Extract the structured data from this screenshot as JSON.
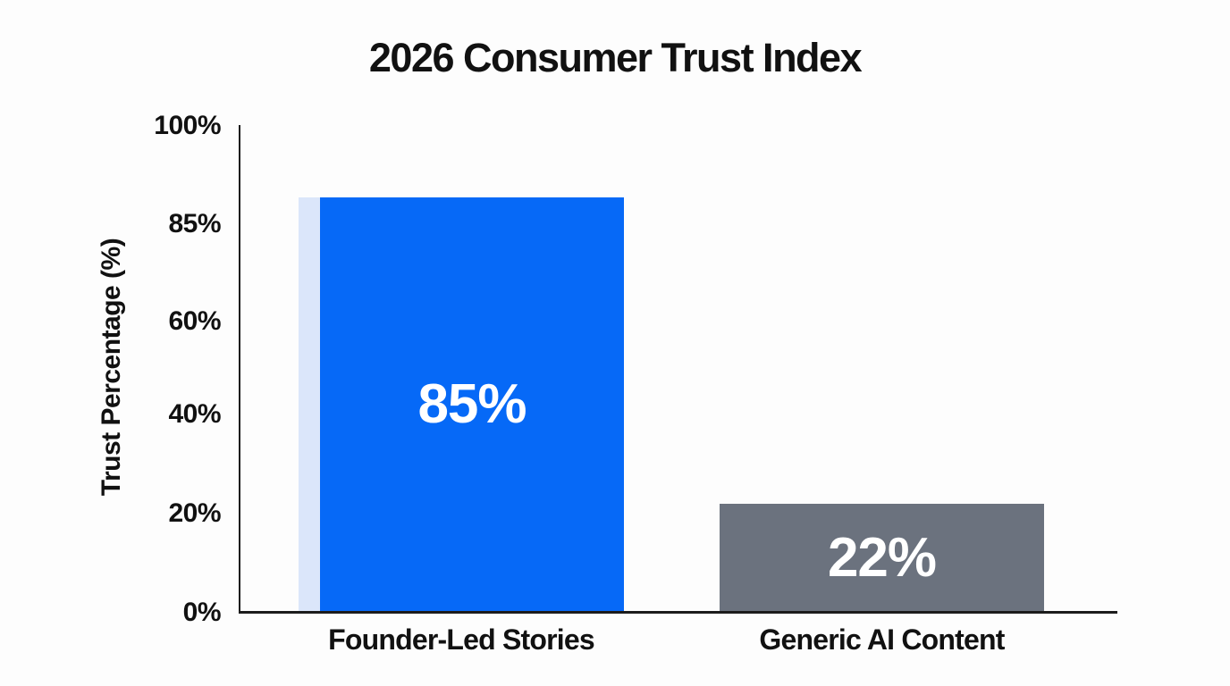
{
  "title": "2026 Consumer Trust Index",
  "colors": {
    "background": "#fdfdfd",
    "axis": "#1c1c1c",
    "text": "#111111",
    "bar_label_text": "#ffffff",
    "founder_bar": "#0669f7",
    "founder_bar_strip": "#dbe6fa",
    "generic_bar": "#6b727e"
  },
  "chart_data": {
    "type": "bar",
    "title": "2026 Consumer Trust Index",
    "xlabel": "",
    "ylabel": "Trust Percentage (%)",
    "ylim": [
      0,
      100
    ],
    "grid": false,
    "legend": false,
    "categories": [
      "Founder-Led Stories",
      "Generic AI Content"
    ],
    "values": [
      85,
      22
    ],
    "bar_labels": [
      "85%",
      "22%"
    ],
    "bar_colors": [
      "#0669f7",
      "#6b727e"
    ],
    "accent_strip_color": "#dbe6fa",
    "ytick_labels": [
      "100%",
      "85%",
      "60%",
      "40%",
      "20%",
      "0%"
    ]
  }
}
